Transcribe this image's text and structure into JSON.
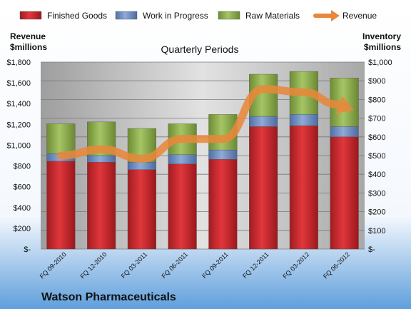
{
  "chart_data": {
    "type": "bar",
    "title": "Quarterly Periods",
    "footer": "Watson Pharmaceuticals",
    "left_axis_title": [
      "Revenue",
      "$millions"
    ],
    "right_axis_title": [
      "Inventory",
      "$millions"
    ],
    "categories": [
      "FQ 09-2010",
      "FQ 12-2010",
      "FQ 03-2011",
      "FQ 06-2011",
      "FQ 09-2011",
      "FQ 12-2011",
      "FQ 03-2012",
      "FQ 06-2012"
    ],
    "stacked": true,
    "bar_axis": "right",
    "left_ylim": [
      0,
      1800
    ],
    "right_ylim": [
      0,
      1000
    ],
    "left_ticks": [
      "$-",
      "$200",
      "$400",
      "$600",
      "$800",
      "$1,000",
      "$1,200",
      "$1,400",
      "$1,600",
      "$1,800"
    ],
    "right_ticks": [
      "$-",
      "$100",
      "$200",
      "$300",
      "$400",
      "$500",
      "$600",
      "$700",
      "$800",
      "$900",
      "$1,000"
    ],
    "series": [
      {
        "name": "Finished Goods",
        "color": "#c0262b",
        "values": [
          470,
          465,
          425,
          455,
          480,
          655,
          660,
          600
        ]
      },
      {
        "name": "Work in Progress",
        "color": "#6f8fc5",
        "values": [
          40,
          35,
          40,
          50,
          50,
          55,
          60,
          55
        ]
      },
      {
        "name": "Raw Materials",
        "color": "#8fb04a",
        "values": [
          160,
          180,
          180,
          165,
          190,
          225,
          230,
          260
        ]
      }
    ],
    "line_series": {
      "name": "Revenue",
      "color": "#e8873a",
      "axis": "left",
      "values": [
        900,
        960,
        870,
        1060,
        1060,
        1540,
        1510,
        1370
      ]
    },
    "legend_position": "top",
    "grid": true
  }
}
